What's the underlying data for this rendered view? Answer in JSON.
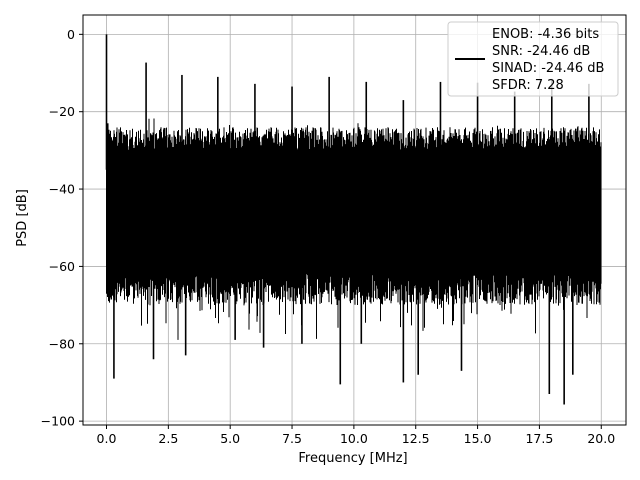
{
  "chart_data": {
    "type": "line",
    "xlabel": "Frequency [MHz]",
    "ylabel": "PSD [dB]",
    "xlim": [
      -0.95,
      21.0
    ],
    "ylim": [
      -101.0,
      5.0
    ],
    "xticks": [
      0.0,
      2.5,
      5.0,
      7.5,
      10.0,
      12.5,
      15.0,
      17.5,
      20.0
    ],
    "xtick_labels": [
      "0.0",
      "2.5",
      "5.0",
      "7.5",
      "10.0",
      "12.5",
      "15.0",
      "17.5",
      "20.0"
    ],
    "yticks": [
      0,
      -20,
      -40,
      -60,
      -80,
      -100
    ],
    "ytick_labels": [
      "0",
      "−20",
      "−40",
      "−60",
      "−80",
      "−100"
    ],
    "grid": true,
    "legend_position": "top-right",
    "legend_lines": [
      "ENOB: -4.36 bits",
      "SNR: -24.46 dB",
      "SINAD: -24.46 dB",
      "SFDR: 7.28"
    ],
    "series_color": "#000000",
    "noise_floor_band": {
      "x_range": [
        0.0,
        20.0
      ],
      "upper_db": -24,
      "lower_db": -62
    },
    "peaks": [
      {
        "x": 0.0,
        "y": 0.0
      },
      {
        "x": 0.05,
        "y": -23.0
      },
      {
        "x": 1.6,
        "y": -7.3
      },
      {
        "x": 3.05,
        "y": -10.5
      },
      {
        "x": 4.5,
        "y": -11.0
      },
      {
        "x": 6.0,
        "y": -12.8
      },
      {
        "x": 7.5,
        "y": -13.5
      },
      {
        "x": 9.0,
        "y": -11.0
      },
      {
        "x": 10.5,
        "y": -12.3
      },
      {
        "x": 12.0,
        "y": -17.0
      },
      {
        "x": 13.5,
        "y": -12.3
      },
      {
        "x": 15.0,
        "y": -12.5
      },
      {
        "x": 16.5,
        "y": -14.8
      },
      {
        "x": 18.0,
        "y": -11.5
      },
      {
        "x": 19.5,
        "y": -12.8
      }
    ],
    "dips": [
      {
        "x": 0.3,
        "y": -89.0
      },
      {
        "x": 1.9,
        "y": -84.0
      },
      {
        "x": 3.2,
        "y": -83.0
      },
      {
        "x": 5.2,
        "y": -79.0
      },
      {
        "x": 6.35,
        "y": -81.0
      },
      {
        "x": 7.9,
        "y": -80.0
      },
      {
        "x": 9.45,
        "y": -90.5
      },
      {
        "x": 10.3,
        "y": -80.0
      },
      {
        "x": 12.0,
        "y": -90.0
      },
      {
        "x": 12.6,
        "y": -88.0
      },
      {
        "x": 14.35,
        "y": -87.0
      },
      {
        "x": 17.9,
        "y": -93.0
      },
      {
        "x": 18.5,
        "y": -95.7
      },
      {
        "x": 18.85,
        "y": -88.0
      }
    ]
  }
}
